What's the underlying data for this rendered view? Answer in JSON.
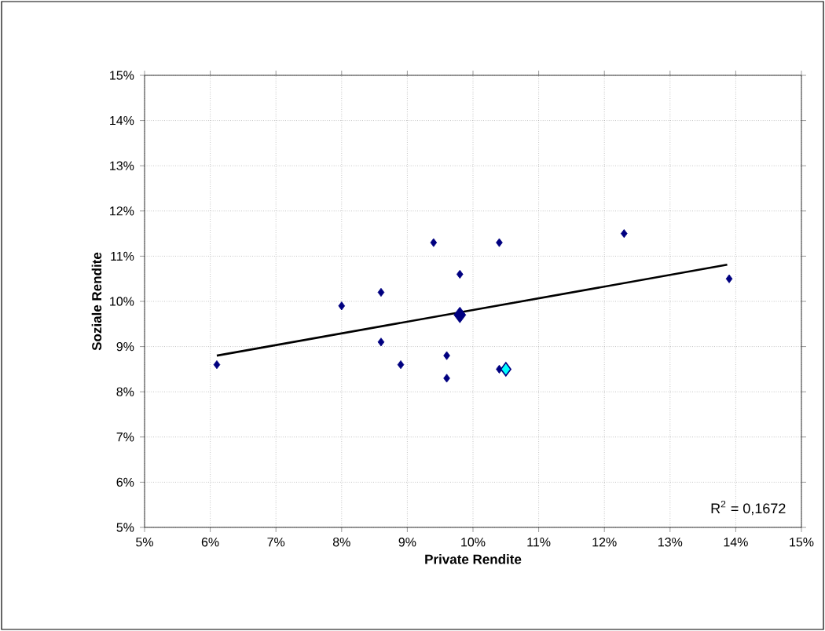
{
  "chart_data": {
    "type": "scatter",
    "xlabel": "Private Rendite",
    "ylabel": "Soziale Rendite",
    "marker": "diamond",
    "grid": true,
    "xlim": [
      5,
      15
    ],
    "ylim": [
      5,
      15
    ],
    "xticks": [
      {
        "value": 5,
        "label": "5%"
      },
      {
        "value": 6,
        "label": "6%"
      },
      {
        "value": 7,
        "label": "7%"
      },
      {
        "value": 8,
        "label": "8%"
      },
      {
        "value": 9,
        "label": "9%"
      },
      {
        "value": 10,
        "label": "10%"
      },
      {
        "value": 11,
        "label": "11%"
      },
      {
        "value": 12,
        "label": "12%"
      },
      {
        "value": 13,
        "label": "13%"
      },
      {
        "value": 14,
        "label": "14%"
      },
      {
        "value": 15,
        "label": "15%"
      }
    ],
    "yticks": [
      {
        "value": 5,
        "label": "5%"
      },
      {
        "value": 6,
        "label": "6%"
      },
      {
        "value": 7,
        "label": "7%"
      },
      {
        "value": 8,
        "label": "8%"
      },
      {
        "value": 9,
        "label": "9%"
      },
      {
        "value": 10,
        "label": "10%"
      },
      {
        "value": 11,
        "label": "11%"
      },
      {
        "value": 12,
        "label": "12%"
      },
      {
        "value": 13,
        "label": "13%"
      },
      {
        "value": 14,
        "label": "14%"
      },
      {
        "value": 15,
        "label": "15%"
      }
    ],
    "series": [
      {
        "color": "#000080",
        "x": [
          6.1,
          8.0,
          8.6,
          8.6,
          8.9,
          9.4,
          9.6,
          9.6,
          9.8,
          10.4,
          10.4,
          12.3,
          13.9
        ],
        "values": [
          8.6,
          9.9,
          10.2,
          9.1,
          8.6,
          11.3,
          8.8,
          8.3,
          10.6,
          11.3,
          8.5,
          11.5,
          10.5
        ]
      },
      {
        "type": "line",
        "color": "#000000",
        "marker": "none",
        "x": [
          6.1,
          13.87
        ],
        "values": [
          8.8,
          10.81
        ]
      },
      {
        "color": "#000080",
        "x": [
          9.8
        ],
        "values": [
          9.7
        ]
      },
      {
        "color": "#00ffff",
        "x": [
          10.5
        ],
        "values": [
          8.5
        ]
      }
    ],
    "annotations": [
      "R$^{2}$ = 0,1672"
    ]
  }
}
